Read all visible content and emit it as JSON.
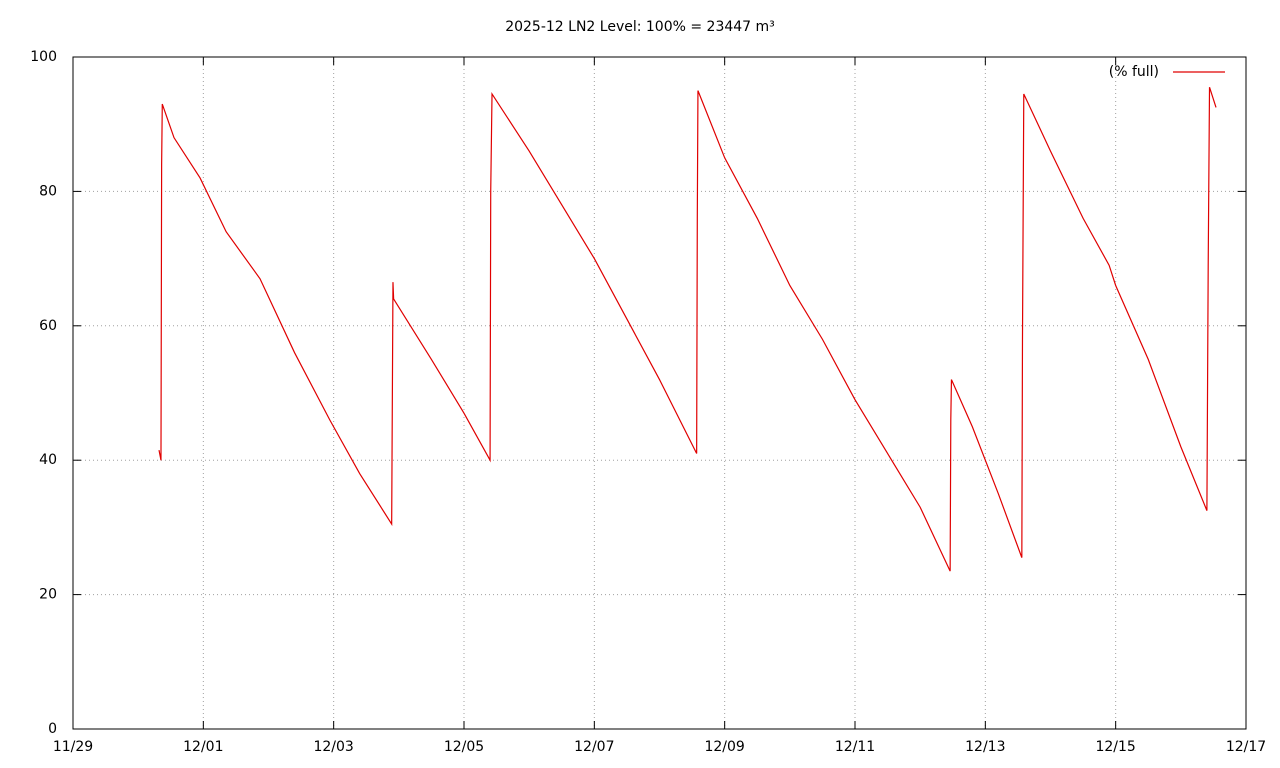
{
  "chart_data": {
    "type": "line",
    "title": "2025-12 LN2 Level: 100% = 23447 m³",
    "xlim": [
      0,
      18
    ],
    "xticks": [
      {
        "value": 0,
        "label": "11/29"
      },
      {
        "value": 2,
        "label": "12/01"
      },
      {
        "value": 4,
        "label": "12/03"
      },
      {
        "value": 6,
        "label": "12/05"
      },
      {
        "value": 8,
        "label": "12/07"
      },
      {
        "value": 10,
        "label": "12/09"
      },
      {
        "value": 12,
        "label": "12/11"
      },
      {
        "value": 14,
        "label": "12/13"
      },
      {
        "value": 16,
        "label": "12/15"
      },
      {
        "value": 18,
        "label": "12/17"
      }
    ],
    "ylim": [
      0,
      100
    ],
    "yticks": [
      0,
      20,
      40,
      60,
      80,
      100
    ],
    "grid": true,
    "legend": "top-right",
    "x": [
      1.32,
      1.35,
      1.36,
      1.37,
      1.55,
      1.95,
      2.35,
      2.87,
      3.4,
      3.94,
      4.4,
      4.89,
      4.91,
      4.92,
      5.5,
      6.0,
      6.4,
      6.41,
      6.43,
      7.0,
      7.5,
      8.0,
      8.5,
      9.0,
      9.57,
      9.58,
      9.59,
      10.0,
      10.5,
      11.0,
      11.5,
      12.0,
      12.5,
      13.0,
      13.46,
      13.47,
      13.48,
      13.8,
      14.2,
      14.56,
      14.57,
      14.59,
      15.0,
      15.5,
      15.9,
      16.0,
      16.5,
      17.0,
      17.4,
      17.42,
      17.44,
      17.54
    ],
    "series": [
      {
        "name": "(% full)",
        "color": "#e00000",
        "values": [
          41.5,
          40,
          84,
          93,
          88,
          82,
          74,
          67,
          56,
          46,
          38,
          30.5,
          66.5,
          64,
          55,
          47,
          40,
          80,
          94.5,
          86,
          78,
          70,
          61,
          52,
          41,
          76,
          95,
          85,
          76,
          66,
          58,
          49,
          41,
          33,
          23.5,
          46,
          52,
          45,
          35,
          25.5,
          58,
          94.5,
          86,
          76,
          69,
          66,
          55,
          42,
          32.5,
          69,
          95.5,
          92.5
        ]
      }
    ]
  }
}
